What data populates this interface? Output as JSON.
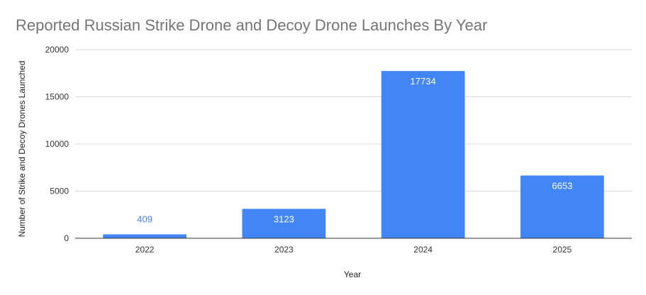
{
  "chart_data": {
    "type": "bar",
    "title": "Reported Russian Strike Drone and Decoy Drone Launches By Year",
    "xlabel": "Year",
    "ylabel": "Number of Strike and Decoy Drones Launched",
    "categories": [
      "2022",
      "2023",
      "2024",
      "2025"
    ],
    "values": [
      409,
      3123,
      17734,
      6653
    ],
    "ylim": [
      0,
      20000
    ],
    "yticks": [
      0,
      5000,
      10000,
      15000,
      20000
    ],
    "grid": true,
    "legend": "none"
  },
  "colors": {
    "bar": "#4285f4",
    "label_inside": "#ffffff",
    "label_outside": "#4285f4",
    "grid": "#d9d9d9",
    "axis": "#333333"
  }
}
